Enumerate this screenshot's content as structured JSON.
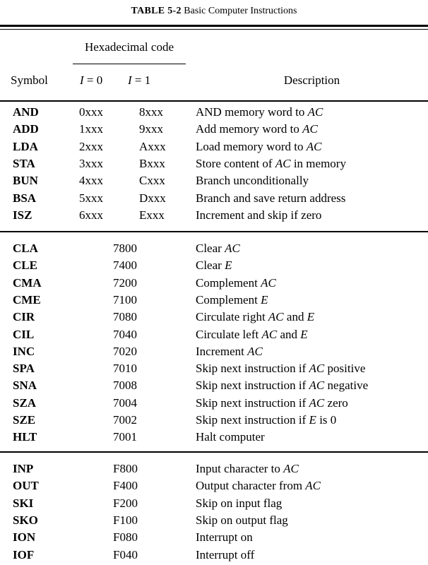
{
  "caption": {
    "number": "TABLE 5-2",
    "title": "Basic Computer Instructions"
  },
  "headers": {
    "hex": "Hexadecimal code",
    "symbol": "Symbol",
    "i0": "I = 0",
    "i1": "I = 1",
    "description": "Description"
  },
  "memory_reference": [
    {
      "symbol": "AND",
      "i0": "0xxx",
      "i1": "8xxx",
      "description": "AND memory word to AC"
    },
    {
      "symbol": "ADD",
      "i0": "1xxx",
      "i1": "9xxx",
      "description": "Add memory word to AC"
    },
    {
      "symbol": "LDA",
      "i0": "2xxx",
      "i1": "Axxx",
      "description": "Load memory word to AC"
    },
    {
      "symbol": "STA",
      "i0": "3xxx",
      "i1": "Bxxx",
      "description": "Store content of AC in memory"
    },
    {
      "symbol": "BUN",
      "i0": "4xxx",
      "i1": "Cxxx",
      "description": "Branch unconditionally"
    },
    {
      "symbol": "BSA",
      "i0": "5xxx",
      "i1": "Dxxx",
      "description": "Branch and save return address"
    },
    {
      "symbol": "ISZ",
      "i0": "6xxx",
      "i1": "Exxx",
      "description": "Increment and skip if zero"
    }
  ],
  "register_reference": [
    {
      "symbol": "CLA",
      "code": "7800",
      "description": "Clear AC"
    },
    {
      "symbol": "CLE",
      "code": "7400",
      "description": "Clear E"
    },
    {
      "symbol": "CMA",
      "code": "7200",
      "description": "Complement AC"
    },
    {
      "symbol": "CME",
      "code": "7100",
      "description": "Complement E"
    },
    {
      "symbol": "CIR",
      "code": "7080",
      "description": "Circulate right AC and E"
    },
    {
      "symbol": "CIL",
      "code": "7040",
      "description": "Circulate left AC and E"
    },
    {
      "symbol": "INC",
      "code": "7020",
      "description": "Increment AC"
    },
    {
      "symbol": "SPA",
      "code": "7010",
      "description": "Skip next instruction if AC positive"
    },
    {
      "symbol": "SNA",
      "code": "7008",
      "description": "Skip next instruction if AC negative"
    },
    {
      "symbol": "SZA",
      "code": "7004",
      "description": "Skip next instruction if AC zero"
    },
    {
      "symbol": "SZE",
      "code": "7002",
      "description": "Skip next instruction if E is 0"
    },
    {
      "symbol": "HLT",
      "code": "7001",
      "description": "Halt computer"
    }
  ],
  "io_reference": [
    {
      "symbol": "INP",
      "code": "F800",
      "description": "Input character to AC"
    },
    {
      "symbol": "OUT",
      "code": "F400",
      "description": "Output character from AC"
    },
    {
      "symbol": "SKI",
      "code": "F200",
      "description": "Skip on input flag"
    },
    {
      "symbol": "SKO",
      "code": "F100",
      "description": "Skip on output flag"
    },
    {
      "symbol": "ION",
      "code": "F080",
      "description": "Interrupt on"
    },
    {
      "symbol": "IOF",
      "code": "F040",
      "description": "Interrupt off"
    }
  ]
}
